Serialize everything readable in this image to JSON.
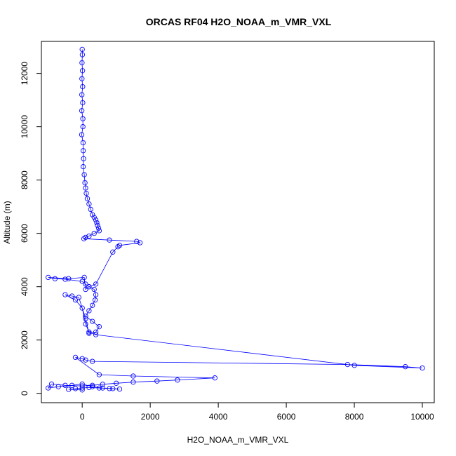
{
  "chart_data": {
    "type": "scatter",
    "title": "ORCAS RF04 H2O_NOAA_m_VMR_VXL",
    "xlabel": "H2O_NOAA_m_VMR_VXL",
    "ylabel": "Altitude (m)",
    "xlim": [
      -1200,
      10350
    ],
    "ylim": [
      -350,
      13200
    ],
    "xticks": [
      0,
      2000,
      4000,
      6000,
      8000,
      10000
    ],
    "yticks": [
      0,
      2000,
      4000,
      6000,
      8000,
      10000,
      12000
    ],
    "grid": false,
    "marker": "open-circle",
    "connected": true,
    "series_color": "#0000ff",
    "series": [
      {
        "x": [
          0,
          5,
          -5,
          8,
          -8,
          12,
          -10,
          15,
          -12,
          18,
          20,
          -15,
          25,
          30,
          40,
          30,
          60,
          80,
          100,
          120,
          150,
          200,
          250,
          300,
          350,
          400,
          430,
          450,
          480,
          500,
          350,
          200,
          100,
          50,
          800,
          1600,
          1700,
          1100,
          1050,
          900,
          400,
          200,
          100,
          60,
          -400,
          -1000,
          -800,
          -500,
          0,
          100,
          200,
          350,
          400,
          380,
          300,
          200,
          100,
          300,
          500,
          400,
          200,
          100,
          -100,
          -300,
          -500,
          -200,
          0,
          100,
          200,
          400,
          8000,
          10000,
          9500,
          7800,
          300,
          100,
          0,
          -200,
          500,
          1500,
          3900,
          2800,
          2200,
          1500,
          1000,
          600,
          300,
          0,
          -500,
          -900,
          -1000,
          -700,
          -300,
          0,
          300,
          600,
          900,
          1100,
          800,
          500,
          200,
          0,
          -200,
          -400,
          0
        ],
        "y": [
          12900,
          12700,
          12400,
          12100,
          11800,
          11500,
          11200,
          10900,
          10600,
          10300,
          10000,
          9700,
          9400,
          9100,
          8800,
          8500,
          8200,
          7900,
          7700,
          7500,
          7300,
          7100,
          6900,
          6700,
          6600,
          6500,
          6400,
          6300,
          6200,
          6100,
          6000,
          5900,
          5850,
          5800,
          5750,
          5700,
          5650,
          5550,
          5500,
          5300,
          4100,
          4000,
          3900,
          4350,
          4300,
          4350,
          4300,
          4280,
          4200,
          4100,
          4000,
          3900,
          3700,
          3500,
          3300,
          3100,
          2900,
          2700,
          2500,
          2300,
          2250,
          2800,
          3600,
          3650,
          3700,
          3500,
          3200,
          2600,
          2300,
          2200,
          1050,
          950,
          1000,
          1080,
          1200,
          1250,
          1300,
          1350,
          700,
          650,
          580,
          500,
          460,
          420,
          380,
          340,
          300,
          280,
          300,
          350,
          200,
          250,
          300,
          350,
          250,
          200,
          180,
          160,
          180,
          200,
          220,
          200,
          180,
          150,
          130
        ]
      }
    ]
  }
}
